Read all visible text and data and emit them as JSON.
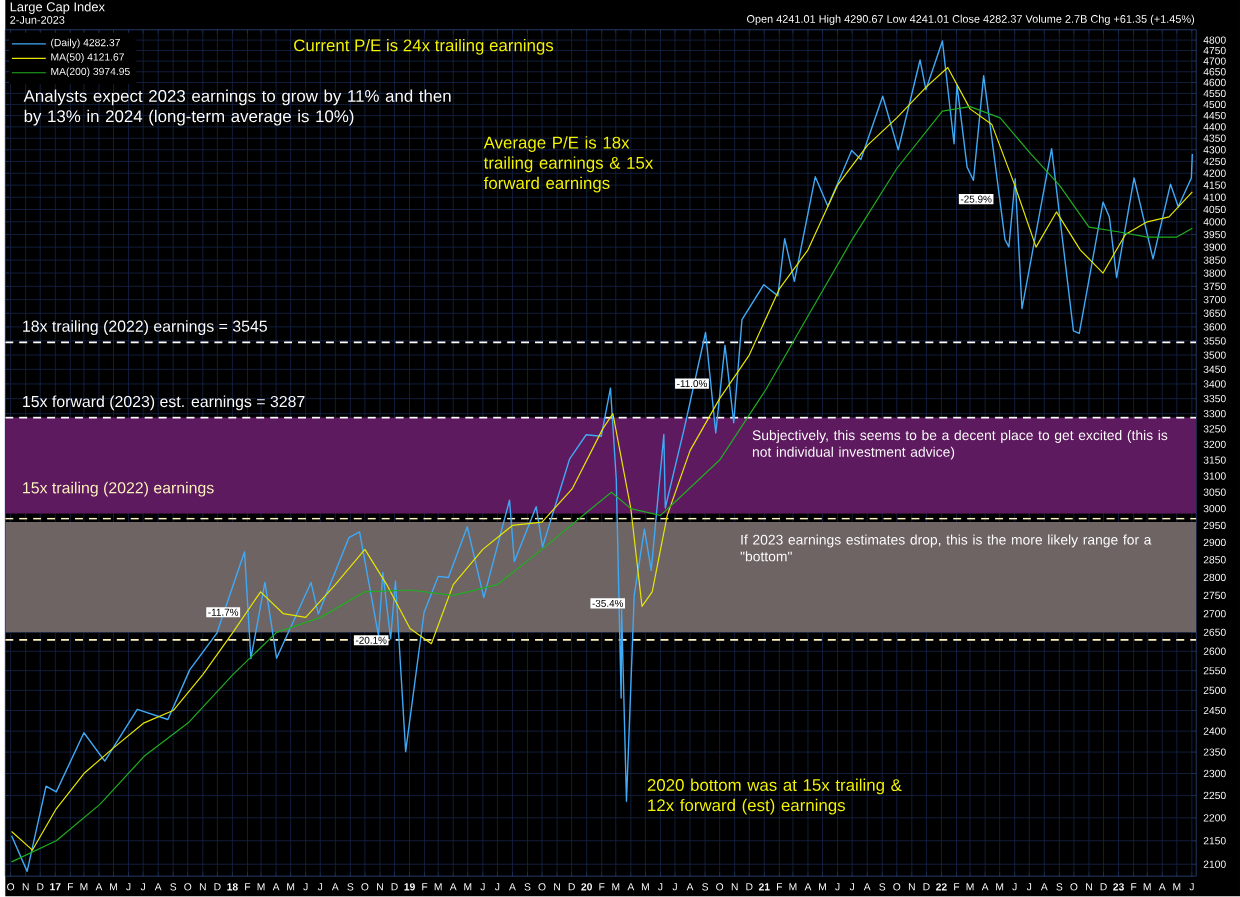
{
  "chart_data": {
    "type": "line",
    "title": "Large Cap Index",
    "subtitle": "2-Jun-2023",
    "x": [
      "2016-10-03",
      "2016-11-04",
      "2016-12-13",
      "2017-01-03",
      "2017-03-01",
      "2017-04-13",
      "2017-06-19",
      "2017-08-21",
      "2017-10-05",
      "2017-11-30",
      "2018-01-26",
      "2018-02-08",
      "2018-03-09",
      "2018-04-02",
      "2018-06-12",
      "2018-06-27",
      "2018-08-29",
      "2018-09-20",
      "2018-10-29",
      "2018-11-07",
      "2018-11-23",
      "2018-12-03",
      "2018-12-24",
      "2019-01-31",
      "2019-03-01",
      "2019-03-22",
      "2019-04-30",
      "2019-06-03",
      "2019-07-26",
      "2019-08-05",
      "2019-09-19",
      "2019-10-02",
      "2019-11-27",
      "2019-12-31",
      "2020-01-31",
      "2020-02-19",
      "2020-03-02",
      "2020-03-12",
      "2020-03-13",
      "2020-03-23",
      "2020-04-08",
      "2020-04-29",
      "2020-05-13",
      "2020-06-08",
      "2020-06-11",
      "2020-07-20",
      "2020-09-02",
      "2020-09-23",
      "2020-10-12",
      "2020-10-30",
      "2020-11-16",
      "2020-12-31",
      "2021-01-29",
      "2021-02-12",
      "2021-03-04",
      "2021-04-16",
      "2021-05-12",
      "2021-06-30",
      "2021-07-19",
      "2021-09-02",
      "2021-10-04",
      "2021-11-18",
      "2021-11-30",
      "2022-01-03",
      "2022-01-27",
      "2022-02-02",
      "2022-02-23",
      "2022-03-08",
      "2022-03-29",
      "2022-05-12",
      "2022-05-20",
      "2022-06-02",
      "2022-06-16",
      "2022-08-16",
      "2022-09-30",
      "2022-10-12",
      "2022-11-30",
      "2022-12-13",
      "2022-12-28",
      "2023-02-02",
      "2023-03-13",
      "2023-04-18",
      "2023-05-04",
      "2023-05-31",
      "2023-06-02"
    ],
    "series": [
      {
        "name": "(Daily) 4282.37",
        "color": "#3fa9f5",
        "values": [
          2161,
          2085,
          2271,
          2258,
          2396,
          2329,
          2453,
          2428,
          2552,
          2648,
          2873,
          2581,
          2786,
          2582,
          2786,
          2699,
          2914,
          2931,
          2641,
          2814,
          2633,
          2790,
          2351,
          2704,
          2803,
          2800,
          2946,
          2744,
          3026,
          2845,
          3006,
          2887,
          3154,
          3231,
          3226,
          3386,
          3090,
          2481,
          2711,
          2237,
          2750,
          2939,
          2820,
          3232,
          3002,
          3251,
          3580,
          3237,
          3534,
          3270,
          3627,
          3756,
          3714,
          3934,
          3768,
          4185,
          4063,
          4297,
          4258,
          4537,
          4300,
          4705,
          4567,
          4796,
          4326,
          4589,
          4225,
          4170,
          4632,
          3930,
          3901,
          4177,
          3667,
          4305,
          3586,
          3577,
          4080,
          4019,
          3783,
          4180,
          3855,
          4154,
          4061,
          4180,
          4282
        ]
      },
      {
        "name": "MA(50) 4121.67",
        "color": "#e6e600",
        "x": [
          "2016-10-03",
          "2016-11-15",
          "2017-01-03",
          "2017-03-01",
          "2017-05-01",
          "2017-07-03",
          "2017-09-01",
          "2017-11-01",
          "2018-01-02",
          "2018-02-28",
          "2018-04-16",
          "2018-06-01",
          "2018-08-01",
          "2018-10-01",
          "2018-11-15",
          "2019-01-02",
          "2019-02-15",
          "2019-04-01",
          "2019-06-01",
          "2019-08-01",
          "2019-10-01",
          "2019-12-02",
          "2020-02-03",
          "2020-02-24",
          "2020-04-01",
          "2020-04-24",
          "2020-05-15",
          "2020-06-15",
          "2020-08-01",
          "2020-10-01",
          "2020-12-01",
          "2021-02-01",
          "2021-04-01",
          "2021-06-01",
          "2021-08-02",
          "2021-10-01",
          "2021-12-01",
          "2022-01-14",
          "2022-03-01",
          "2022-04-15",
          "2022-06-01",
          "2022-07-15",
          "2022-08-26",
          "2022-10-14",
          "2022-11-30",
          "2023-01-15",
          "2023-03-01",
          "2023-04-15",
          "2023-06-02"
        ],
        "values": [
          2170,
          2130,
          2220,
          2300,
          2360,
          2420,
          2450,
          2540,
          2650,
          2760,
          2700,
          2690,
          2780,
          2880,
          2780,
          2660,
          2620,
          2780,
          2880,
          2950,
          2960,
          3060,
          3250,
          3300,
          3000,
          2720,
          2760,
          2980,
          3180,
          3350,
          3500,
          3740,
          3890,
          4150,
          4320,
          4440,
          4580,
          4670,
          4480,
          4410,
          4150,
          3900,
          4040,
          3890,
          3800,
          3950,
          4000,
          4020,
          4122
        ]
      },
      {
        "name": "MA(200) 3974.95",
        "color": "#1fae1f",
        "x": [
          "2016-10-03",
          "2017-01-03",
          "2017-04-03",
          "2017-07-03",
          "2017-10-02",
          "2018-01-02",
          "2018-04-02",
          "2018-07-02",
          "2018-10-01",
          "2019-01-02",
          "2019-04-01",
          "2019-07-01",
          "2019-10-01",
          "2020-01-02",
          "2020-02-21",
          "2020-04-01",
          "2020-06-01",
          "2020-07-01",
          "2020-10-01",
          "2021-01-04",
          "2021-04-01",
          "2021-07-01",
          "2021-10-01",
          "2022-01-03",
          "2022-03-01",
          "2022-05-02",
          "2022-07-01",
          "2022-09-01",
          "2022-11-01",
          "2023-01-03",
          "2023-03-01",
          "2023-05-01",
          "2023-06-02"
        ],
        "values": [
          2105,
          2150,
          2230,
          2340,
          2420,
          2540,
          2650,
          2690,
          2760,
          2765,
          2750,
          2780,
          2880,
          2990,
          3050,
          3000,
          2980,
          3020,
          3150,
          3380,
          3640,
          3930,
          4220,
          4470,
          4490,
          4440,
          4290,
          4150,
          3980,
          3960,
          3940,
          3940,
          3975
        ]
      }
    ],
    "xlim": [
      "2016-09-20",
      "2023-06-10"
    ],
    "xticks": [
      {
        "value": "2016-10",
        "label": "O"
      },
      {
        "value": "2016-11",
        "label": "N"
      },
      {
        "value": "2016-12",
        "label": "D"
      },
      {
        "value": "2017-01",
        "label": "17"
      },
      {
        "value": "2017-02",
        "label": "F"
      },
      {
        "value": "2017-03",
        "label": "M"
      },
      {
        "value": "2017-04",
        "label": "A"
      },
      {
        "value": "2017-05",
        "label": "M"
      },
      {
        "value": "2017-06",
        "label": "J"
      },
      {
        "value": "2017-07",
        "label": "J"
      },
      {
        "value": "2017-08",
        "label": "A"
      },
      {
        "value": "2017-09",
        "label": "S"
      },
      {
        "value": "2017-10",
        "label": "O"
      },
      {
        "value": "2017-11",
        "label": "N"
      },
      {
        "value": "2017-12",
        "label": "D"
      },
      {
        "value": "2018-01",
        "label": "18"
      },
      {
        "value": "2018-02",
        "label": "F"
      },
      {
        "value": "2018-03",
        "label": "M"
      },
      {
        "value": "2018-04",
        "label": "A"
      },
      {
        "value": "2018-05",
        "label": "M"
      },
      {
        "value": "2018-06",
        "label": "J"
      },
      {
        "value": "2018-07",
        "label": "J"
      },
      {
        "value": "2018-08",
        "label": "A"
      },
      {
        "value": "2018-09",
        "label": "S"
      },
      {
        "value": "2018-10",
        "label": "O"
      },
      {
        "value": "2018-11",
        "label": "N"
      },
      {
        "value": "2018-12",
        "label": "D"
      },
      {
        "value": "2019-01",
        "label": "19"
      },
      {
        "value": "2019-02",
        "label": "F"
      },
      {
        "value": "2019-03",
        "label": "M"
      },
      {
        "value": "2019-04",
        "label": "A"
      },
      {
        "value": "2019-05",
        "label": "M"
      },
      {
        "value": "2019-06",
        "label": "J"
      },
      {
        "value": "2019-07",
        "label": "J"
      },
      {
        "value": "2019-08",
        "label": "A"
      },
      {
        "value": "2019-09",
        "label": "S"
      },
      {
        "value": "2019-10",
        "label": "O"
      },
      {
        "value": "2019-11",
        "label": "N"
      },
      {
        "value": "2019-12",
        "label": "D"
      },
      {
        "value": "2020-01",
        "label": "20"
      },
      {
        "value": "2020-02",
        "label": "F"
      },
      {
        "value": "2020-03",
        "label": "M"
      },
      {
        "value": "2020-04",
        "label": "A"
      },
      {
        "value": "2020-05",
        "label": "M"
      },
      {
        "value": "2020-06",
        "label": "J"
      },
      {
        "value": "2020-07",
        "label": "J"
      },
      {
        "value": "2020-08",
        "label": "A"
      },
      {
        "value": "2020-09",
        "label": "S"
      },
      {
        "value": "2020-10",
        "label": "O"
      },
      {
        "value": "2020-11",
        "label": "N"
      },
      {
        "value": "2020-12",
        "label": "D"
      },
      {
        "value": "2021-01",
        "label": "21"
      },
      {
        "value": "2021-02",
        "label": "F"
      },
      {
        "value": "2021-03",
        "label": "M"
      },
      {
        "value": "2021-04",
        "label": "A"
      },
      {
        "value": "2021-05",
        "label": "M"
      },
      {
        "value": "2021-06",
        "label": "J"
      },
      {
        "value": "2021-07",
        "label": "J"
      },
      {
        "value": "2021-08",
        "label": "A"
      },
      {
        "value": "2021-09",
        "label": "S"
      },
      {
        "value": "2021-10",
        "label": "O"
      },
      {
        "value": "2021-11",
        "label": "N"
      },
      {
        "value": "2021-12",
        "label": "D"
      },
      {
        "value": "2022-01",
        "label": "22"
      },
      {
        "value": "2022-02",
        "label": "F"
      },
      {
        "value": "2022-03",
        "label": "M"
      },
      {
        "value": "2022-04",
        "label": "A"
      },
      {
        "value": "2022-05",
        "label": "M"
      },
      {
        "value": "2022-06",
        "label": "J"
      },
      {
        "value": "2022-07",
        "label": "J"
      },
      {
        "value": "2022-08",
        "label": "A"
      },
      {
        "value": "2022-09",
        "label": "S"
      },
      {
        "value": "2022-10",
        "label": "O"
      },
      {
        "value": "2022-11",
        "label": "N"
      },
      {
        "value": "2022-12",
        "label": "D"
      },
      {
        "value": "2023-01",
        "label": "23"
      },
      {
        "value": "2023-02",
        "label": "F"
      },
      {
        "value": "2023-03",
        "label": "M"
      },
      {
        "value": "2023-04",
        "label": "A"
      },
      {
        "value": "2023-05",
        "label": "M"
      },
      {
        "value": "2023-06",
        "label": "J"
      }
    ],
    "ylim": [
      2075,
      4850
    ],
    "log": true,
    "yticks": [
      2100,
      2150,
      2200,
      2250,
      2300,
      2350,
      2400,
      2450,
      2500,
      2550,
      2600,
      2650,
      2700,
      2750,
      2800,
      2850,
      2900,
      2950,
      3000,
      3050,
      3100,
      3150,
      3200,
      3250,
      3300,
      3350,
      3400,
      3450,
      3500,
      3550,
      3600,
      3650,
      3700,
      3750,
      3800,
      3850,
      3900,
      3950,
      4000,
      4050,
      4100,
      4150,
      4200,
      4250,
      4300,
      4350,
      4400,
      4450,
      4500,
      4550,
      4600,
      4650,
      4700,
      4750,
      4800
    ],
    "grid": true,
    "legend": "top left",
    "marker": "none",
    "line_style": "solid",
    "ref_lines": [
      {
        "axis": "y",
        "value": 3545,
        "label": "18x trailing (2022) earnings = 3545",
        "color": "#ffffff",
        "line_style": "dashed"
      },
      {
        "axis": "y",
        "value": 3287,
        "label": "15x forward (2023) est. earnings = 3287",
        "color": "#ffffff",
        "line_style": "dashed"
      },
      {
        "axis": "y",
        "value": 2970,
        "label": "15x trailing (2022) earnings",
        "color": "#fff4c0",
        "line_style": "dashed"
      },
      {
        "axis": "y",
        "value": 2630,
        "color": "#fff4c0",
        "line_style": "dashed"
      }
    ],
    "bands": [
      {
        "axis": "y",
        "from": 2985,
        "to": 3287,
        "label": "Subjectively, this seems to be a decent place to get excited (this is not individual investment advice)",
        "color": "#5e1a5e"
      },
      {
        "axis": "y",
        "from": 2650,
        "to": 2960,
        "label": "If 2023 earnings estimates drop, this is the more likely range for a \"bottom\"",
        "color": "#6e6464"
      }
    ],
    "annotations": [
      "Open 4241.01 High 4290.67 Low 4241.01 Close 4282.37 Volume 2.7B Chg +61.35 (+1.45%)",
      "Current P/E is 24x trailing earnings",
      "Analysts expect 2023 earnings to grow by 11% and then by 13% in 2024 (long-term average is 10%)",
      "Average P/E is 18x trailing earnings & 15x forward earnings",
      "2020 bottom was at 15x trailing & 12x forward (est) earnings",
      {
        "text": "-11.7%",
        "x": "2017-12-13",
        "y": 2704
      },
      {
        "text": "-20.1%",
        "x": "2018-10-14",
        "y": 2629
      },
      "-35.4%",
      {
        "text": "-11.0%",
        "x": "2020-08-05",
        "y": 3401
      },
      "-25.9%"
    ]
  }
}
